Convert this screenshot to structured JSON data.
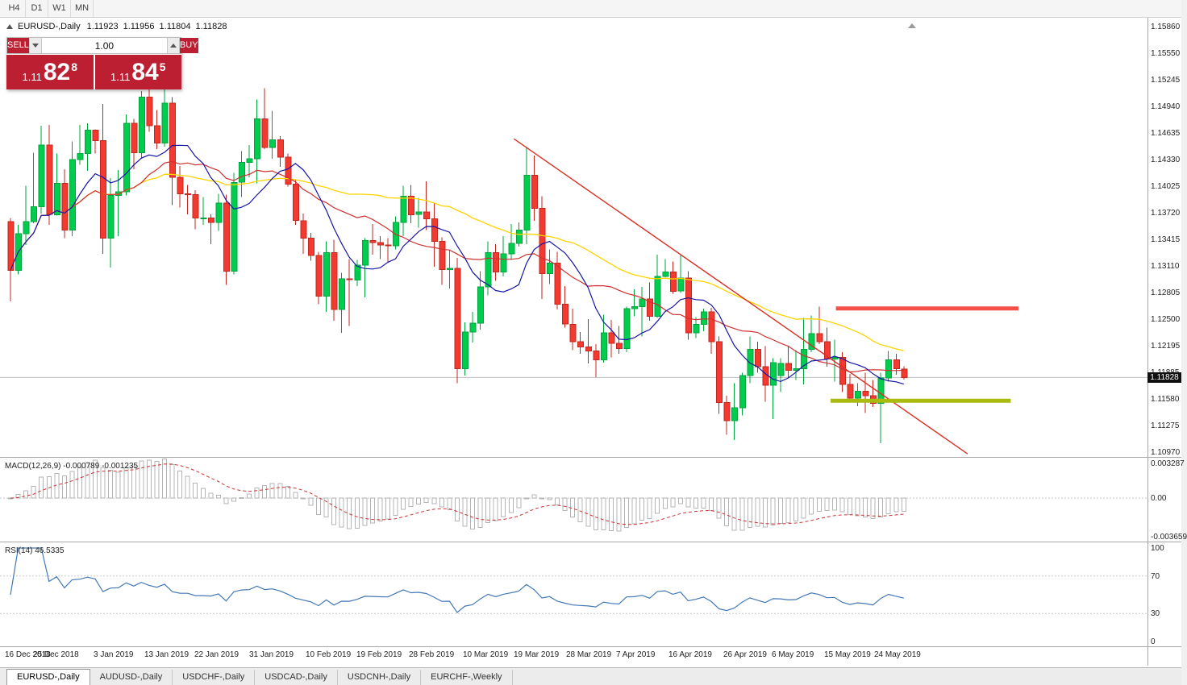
{
  "window": {
    "timeframe_buttons": [
      "H4",
      "D1",
      "W1",
      "MN"
    ]
  },
  "chart": {
    "title": {
      "symbol_period": "EURUSD-,Daily",
      "open": "1.11923",
      "high": "1.11956",
      "low": "1.11804",
      "close": "1.11828"
    },
    "current_bid": "1.11828",
    "trade_panel": {
      "sell_label": "SELL",
      "buy_label": "BUY",
      "volume": "1.00",
      "sell_price": {
        "prefix": "1.11",
        "big": "82",
        "sup": "8"
      },
      "buy_price": {
        "prefix": "1.11",
        "big": "84",
        "sup": "5"
      },
      "panel_color": "#bd1f32"
    }
  },
  "chart_data": {
    "type": "candlestick",
    "symbol": "EURUSD-",
    "period": "Daily",
    "bar_spacing": 9.55,
    "colors": {
      "up": "#00cc4e",
      "up_stroke": "#00a33e",
      "down": "#f23a30",
      "down_stroke": "#c3271f",
      "ma_fast": "#1616a7",
      "ma_mid": "#d02f2f",
      "ma_slow": "#ffd300",
      "trend": "#d93025",
      "bid_line": "#c0c0c0",
      "macd_hist": "#b4b4b4",
      "macd_signal": "#cc3333",
      "rsi": "#4379b7",
      "level_dotted": "#c8c8c8"
    },
    "candles": [
      [
        1.1362,
        1.1366,
        1.127,
        1.1306
      ],
      [
        1.1306,
        1.1358,
        1.1301,
        1.1348
      ],
      [
        1.1348,
        1.1403,
        1.1335,
        1.1362
      ],
      [
        1.1362,
        1.1441,
        1.136,
        1.1379
      ],
      [
        1.1379,
        1.1472,
        1.1371,
        1.145
      ],
      [
        1.145,
        1.1473,
        1.1358,
        1.137
      ],
      [
        1.137,
        1.144,
        1.1369,
        1.1406
      ],
      [
        1.1406,
        1.1422,
        1.1343,
        1.1352
      ],
      [
        1.1352,
        1.1454,
        1.1345,
        1.1433
      ],
      [
        1.1433,
        1.1473,
        1.1427,
        1.144
      ],
      [
        1.144,
        1.1475,
        1.142,
        1.1467
      ],
      [
        1.1467,
        1.1468,
        1.144,
        1.1455
      ],
      [
        1.1455,
        1.1497,
        1.1325,
        1.1343
      ],
      [
        1.1343,
        1.1412,
        1.1309,
        1.1392
      ],
      [
        1.1392,
        1.1421,
        1.1345,
        1.1396
      ],
      [
        1.1396,
        1.1485,
        1.1392,
        1.1475
      ],
      [
        1.1475,
        1.148,
        1.1422,
        1.1441
      ],
      [
        1.1441,
        1.1512,
        1.1434,
        1.1505
      ],
      [
        1.1505,
        1.1516,
        1.1465,
        1.1472
      ],
      [
        1.1472,
        1.149,
        1.1445,
        1.1452
      ],
      [
        1.1452,
        1.1514,
        1.1448,
        1.1498
      ],
      [
        1.1498,
        1.1505,
        1.1381,
        1.1413
      ],
      [
        1.1413,
        1.1426,
        1.1378,
        1.1394
      ],
      [
        1.1394,
        1.1404,
        1.137,
        1.1393
      ],
      [
        1.1393,
        1.1398,
        1.1353,
        1.1366
      ],
      [
        1.1366,
        1.139,
        1.1358,
        1.1366
      ],
      [
        1.1366,
        1.137,
        1.1336,
        1.1361
      ],
      [
        1.1361,
        1.1394,
        1.1351,
        1.1383
      ],
      [
        1.1383,
        1.1393,
        1.1289,
        1.1305
      ],
      [
        1.1305,
        1.1418,
        1.1301,
        1.1407
      ],
      [
        1.1407,
        1.1443,
        1.139,
        1.143
      ],
      [
        1.143,
        1.145,
        1.1413,
        1.1434
      ],
      [
        1.1434,
        1.1502,
        1.1406,
        1.148
      ],
      [
        1.148,
        1.1515,
        1.1445,
        1.1447
      ],
      [
        1.1447,
        1.1489,
        1.1434,
        1.1456
      ],
      [
        1.1456,
        1.146,
        1.1425,
        1.1436
      ],
      [
        1.1436,
        1.144,
        1.1402,
        1.1405
      ],
      [
        1.1405,
        1.141,
        1.1358,
        1.1363
      ],
      [
        1.1363,
        1.1371,
        1.1325,
        1.1343
      ],
      [
        1.1343,
        1.1349,
        1.1317,
        1.1323
      ],
      [
        1.1323,
        1.1327,
        1.1267,
        1.1276
      ],
      [
        1.1276,
        1.1339,
        1.1258,
        1.1326
      ],
      [
        1.1326,
        1.1341,
        1.1248,
        1.1261
      ],
      [
        1.1261,
        1.1303,
        1.1234,
        1.1296
      ],
      [
        1.1296,
        1.1319,
        1.1242,
        1.1295
      ],
      [
        1.1295,
        1.1318,
        1.1288,
        1.1312
      ],
      [
        1.1312,
        1.1343,
        1.1275,
        1.134
      ],
      [
        1.134,
        1.1359,
        1.1324,
        1.1338
      ],
      [
        1.1338,
        1.1345,
        1.1319,
        1.1335
      ],
      [
        1.1335,
        1.1343,
        1.1315,
        1.1334
      ],
      [
        1.1334,
        1.1368,
        1.133,
        1.1361
      ],
      [
        1.1361,
        1.1403,
        1.1345,
        1.1391
      ],
      [
        1.1391,
        1.1404,
        1.136,
        1.137
      ],
      [
        1.137,
        1.1389,
        1.1355,
        1.1373
      ],
      [
        1.1373,
        1.1408,
        1.1352,
        1.1365
      ],
      [
        1.1365,
        1.1383,
        1.131,
        1.1339
      ],
      [
        1.1339,
        1.1344,
        1.1289,
        1.1307
      ],
      [
        1.1307,
        1.1329,
        1.1285,
        1.1308
      ],
      [
        1.1308,
        1.132,
        1.1176,
        1.1193
      ],
      [
        1.1193,
        1.1246,
        1.1185,
        1.1235
      ],
      [
        1.1235,
        1.1258,
        1.1223,
        1.1245
      ],
      [
        1.1245,
        1.1305,
        1.1238,
        1.1287
      ],
      [
        1.1287,
        1.1339,
        1.1277,
        1.1326
      ],
      [
        1.1326,
        1.1336,
        1.1294,
        1.1304
      ],
      [
        1.1304,
        1.1345,
        1.1299,
        1.1325
      ],
      [
        1.1325,
        1.1359,
        1.1318,
        1.1337
      ],
      [
        1.1337,
        1.1361,
        1.1333,
        1.1352
      ],
      [
        1.1352,
        1.1448,
        1.1336,
        1.1415
      ],
      [
        1.1415,
        1.1438,
        1.1363,
        1.1377
      ],
      [
        1.1377,
        1.1391,
        1.1273,
        1.1302
      ],
      [
        1.1302,
        1.133,
        1.129,
        1.1314
      ],
      [
        1.1314,
        1.1327,
        1.1261,
        1.1267
      ],
      [
        1.1267,
        1.1288,
        1.124,
        1.1244
      ],
      [
        1.1244,
        1.1262,
        1.1214,
        1.1224
      ],
      [
        1.1224,
        1.1235,
        1.121,
        1.1218
      ],
      [
        1.1218,
        1.125,
        1.1199,
        1.1213
      ],
      [
        1.1213,
        1.1221,
        1.1183,
        1.1203
      ],
      [
        1.1203,
        1.1255,
        1.12,
        1.1234
      ],
      [
        1.1234,
        1.1249,
        1.1206,
        1.1222
      ],
      [
        1.1222,
        1.1242,
        1.121,
        1.1216
      ],
      [
        1.1216,
        1.1264,
        1.1212,
        1.1262
      ],
      [
        1.1262,
        1.1284,
        1.1253,
        1.1264
      ],
      [
        1.1264,
        1.1287,
        1.123,
        1.1273
      ],
      [
        1.1273,
        1.1292,
        1.1248,
        1.1253
      ],
      [
        1.1253,
        1.1324,
        1.1251,
        1.1299
      ],
      [
        1.1299,
        1.1319,
        1.1298,
        1.1304
      ],
      [
        1.1304,
        1.1316,
        1.1279,
        1.1282
      ],
      [
        1.1282,
        1.1324,
        1.128,
        1.1297
      ],
      [
        1.1297,
        1.1305,
        1.1226,
        1.1234
      ],
      [
        1.1234,
        1.1252,
        1.1228,
        1.1244
      ],
      [
        1.1244,
        1.1262,
        1.1236,
        1.1258
      ],
      [
        1.1258,
        1.1263,
        1.121,
        1.1224
      ],
      [
        1.1224,
        1.123,
        1.1141,
        1.1154
      ],
      [
        1.1154,
        1.1162,
        1.1117,
        1.1133
      ],
      [
        1.1133,
        1.1176,
        1.1111,
        1.1148
      ],
      [
        1.1148,
        1.1188,
        1.1139,
        1.1185
      ],
      [
        1.1185,
        1.123,
        1.1176,
        1.1215
      ],
      [
        1.1215,
        1.1224,
        1.1188,
        1.1195
      ],
      [
        1.1195,
        1.1219,
        1.1155,
        1.1174
      ],
      [
        1.1174,
        1.1205,
        1.1135,
        1.12
      ],
      [
        1.1185,
        1.1205,
        1.1166,
        1.1199
      ],
      [
        1.1199,
        1.1219,
        1.1182,
        1.1191
      ],
      [
        1.1191,
        1.1214,
        1.118,
        1.1193
      ],
      [
        1.1193,
        1.1251,
        1.1175,
        1.1215
      ],
      [
        1.1215,
        1.1254,
        1.1212,
        1.1233
      ],
      [
        1.1233,
        1.1264,
        1.1221,
        1.1224
      ],
      [
        1.1224,
        1.124,
        1.1195,
        1.1204
      ],
      [
        1.1204,
        1.1226,
        1.1178,
        1.1206
      ],
      [
        1.1206,
        1.1212,
        1.1166,
        1.1175
      ],
      [
        1.1175,
        1.1187,
        1.1155,
        1.1159
      ],
      [
        1.1159,
        1.1176,
        1.115,
        1.1167
      ],
      [
        1.1167,
        1.1188,
        1.1142,
        1.1162
      ],
      [
        1.1162,
        1.118,
        1.1149,
        1.1153
      ],
      [
        1.1153,
        1.1188,
        1.1107,
        1.1182
      ],
      [
        1.1182,
        1.1213,
        1.1178,
        1.1203
      ],
      [
        1.1203,
        1.121,
        1.1186,
        1.1193
      ],
      [
        1.11923,
        1.11956,
        1.11804,
        1.11828
      ]
    ],
    "moving_averages": {
      "fast_period": 9,
      "mid_period": 18,
      "slow_period": 45
    },
    "price_axis": {
      "labels": [
        "1.15860",
        "1.15550",
        "1.15245",
        "1.14940",
        "1.14635",
        "1.14330",
        "1.14025",
        "1.13720",
        "1.13415",
        "1.13110",
        "1.12805",
        "1.12500",
        "1.12195",
        "1.11885",
        "1.11580",
        "1.11275",
        "1.10970"
      ]
    },
    "date_axis": {
      "labels": [
        "16 Dec 2018",
        "25 Dec 2018",
        "3 Jan 2019",
        "13 Jan 2019",
        "22 Jan 2019",
        "31 Jan 2019",
        "10 Feb 2019",
        "19 Feb 2019",
        "28 Feb 2019",
        "10 Mar 2019",
        "19 Mar 2019",
        "28 Mar 2019",
        "7 Apr 2019",
        "16 Apr 2019",
        "26 Apr 2019",
        "6 May 2019",
        "15 May 2019",
        "24 May 2019"
      ],
      "positions": [
        0.3,
        6.5,
        14.3,
        20.9,
        27.4,
        34.6,
        41.9,
        48.5,
        55.3,
        62.3,
        68.9,
        75.7,
        82.2,
        89.0,
        96.1,
        102.4,
        109.2,
        115.7
      ]
    },
    "overlays": {
      "trendline": {
        "x1": 65.7,
        "p1": 1.1457,
        "x2": 124.6,
        "p2": 1.1095
      },
      "resistance": {
        "x1": 107.5,
        "x2": 131.2,
        "price": 1.1262,
        "color": "#f25048"
      },
      "support": {
        "x1": 106.8,
        "x2": 130.2,
        "price": 1.1156,
        "color": "#a9ba10"
      }
    },
    "indicators": [
      {
        "name": "MACD",
        "label": "MACD(12,26,9) -0.000789 -0.001235",
        "params": [
          12,
          26,
          9
        ],
        "values_display": [
          "-0.000789",
          "-0.001235"
        ],
        "scale_labels": [
          {
            "v": 0.003287,
            "text": "0.003287"
          },
          {
            "v": 0,
            "text": "0.00"
          },
          {
            "v": -0.003659,
            "text": "-0.003659"
          }
        ]
      },
      {
        "name": "RSI",
        "label": "RSI(14) 46.5335",
        "params": [
          14
        ],
        "value_display": "46.5335",
        "levels": [
          70,
          30
        ],
        "scale_labels": [
          {
            "v": 100,
            "text": "100"
          },
          {
            "v": 70,
            "text": "70"
          },
          {
            "v": 30,
            "text": "30"
          },
          {
            "v": 0,
            "text": "0"
          }
        ]
      }
    ]
  },
  "tabs": [
    {
      "label": "EURUSD-,Daily",
      "active": true
    },
    {
      "label": "AUDUSD-,Daily",
      "active": false
    },
    {
      "label": "USDCHF-,Daily",
      "active": false
    },
    {
      "label": "USDCAD-,Daily",
      "active": false
    },
    {
      "label": "USDCNH-,Daily",
      "active": false
    },
    {
      "label": "EURCHF-,Weekly",
      "active": false
    }
  ]
}
